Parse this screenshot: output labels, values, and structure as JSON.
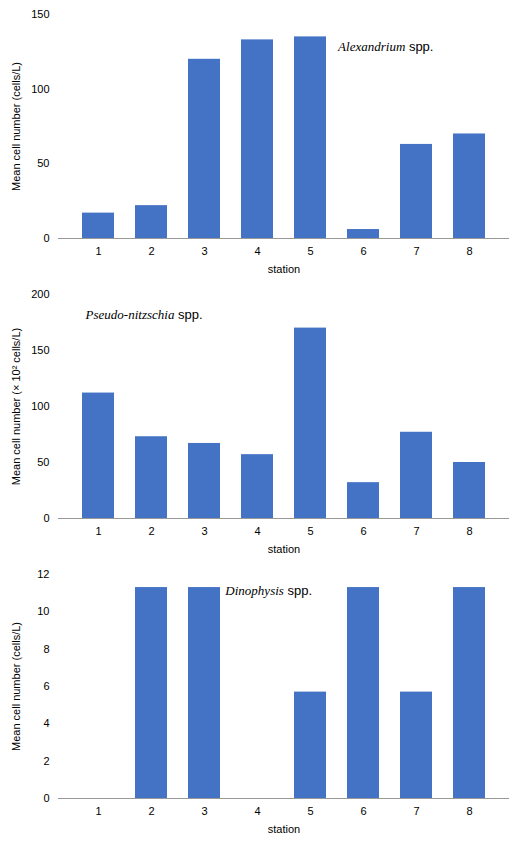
{
  "chart_data": [
    {
      "type": "bar",
      "categories": [
        "1",
        "2",
        "3",
        "4",
        "5",
        "6",
        "7",
        "8"
      ],
      "values": [
        17,
        22,
        120,
        133,
        135,
        6,
        63,
        70
      ],
      "xlabel": "station",
      "ylabel": "Mean cell number (cells/L)",
      "ylim": [
        0,
        150
      ],
      "yticks": [
        0,
        50,
        100,
        150
      ],
      "annotations": [
        "Alexandrium spp."
      ],
      "color": "#4472C4",
      "grid": false
    },
    {
      "type": "bar",
      "categories": [
        "1",
        "2",
        "3",
        "4",
        "5",
        "6",
        "7",
        "8"
      ],
      "values": [
        112,
        73,
        67,
        57,
        170,
        32,
        77,
        50
      ],
      "xlabel": "station",
      "ylabel": "Mean cell number (× 10² cells/L)",
      "ylim": [
        0,
        200
      ],
      "yticks": [
        0,
        50,
        100,
        150,
        200
      ],
      "annotations": [
        "Pseudo-nitzschia spp."
      ],
      "color": "#4472C4",
      "grid": false
    },
    {
      "type": "bar",
      "categories": [
        "1",
        "2",
        "3",
        "4",
        "5",
        "6",
        "7",
        "8"
      ],
      "values": [
        0,
        11.3,
        11.3,
        0,
        5.7,
        11.3,
        5.7,
        11.3
      ],
      "xlabel": "station",
      "ylabel": "Mean cell number (cells/L)",
      "ylim": [
        0,
        12
      ],
      "yticks": [
        0,
        2,
        4,
        6,
        8,
        10,
        12
      ],
      "annotations": [
        "Dinophysis spp."
      ],
      "color": "#4472C4",
      "grid": false
    }
  ]
}
